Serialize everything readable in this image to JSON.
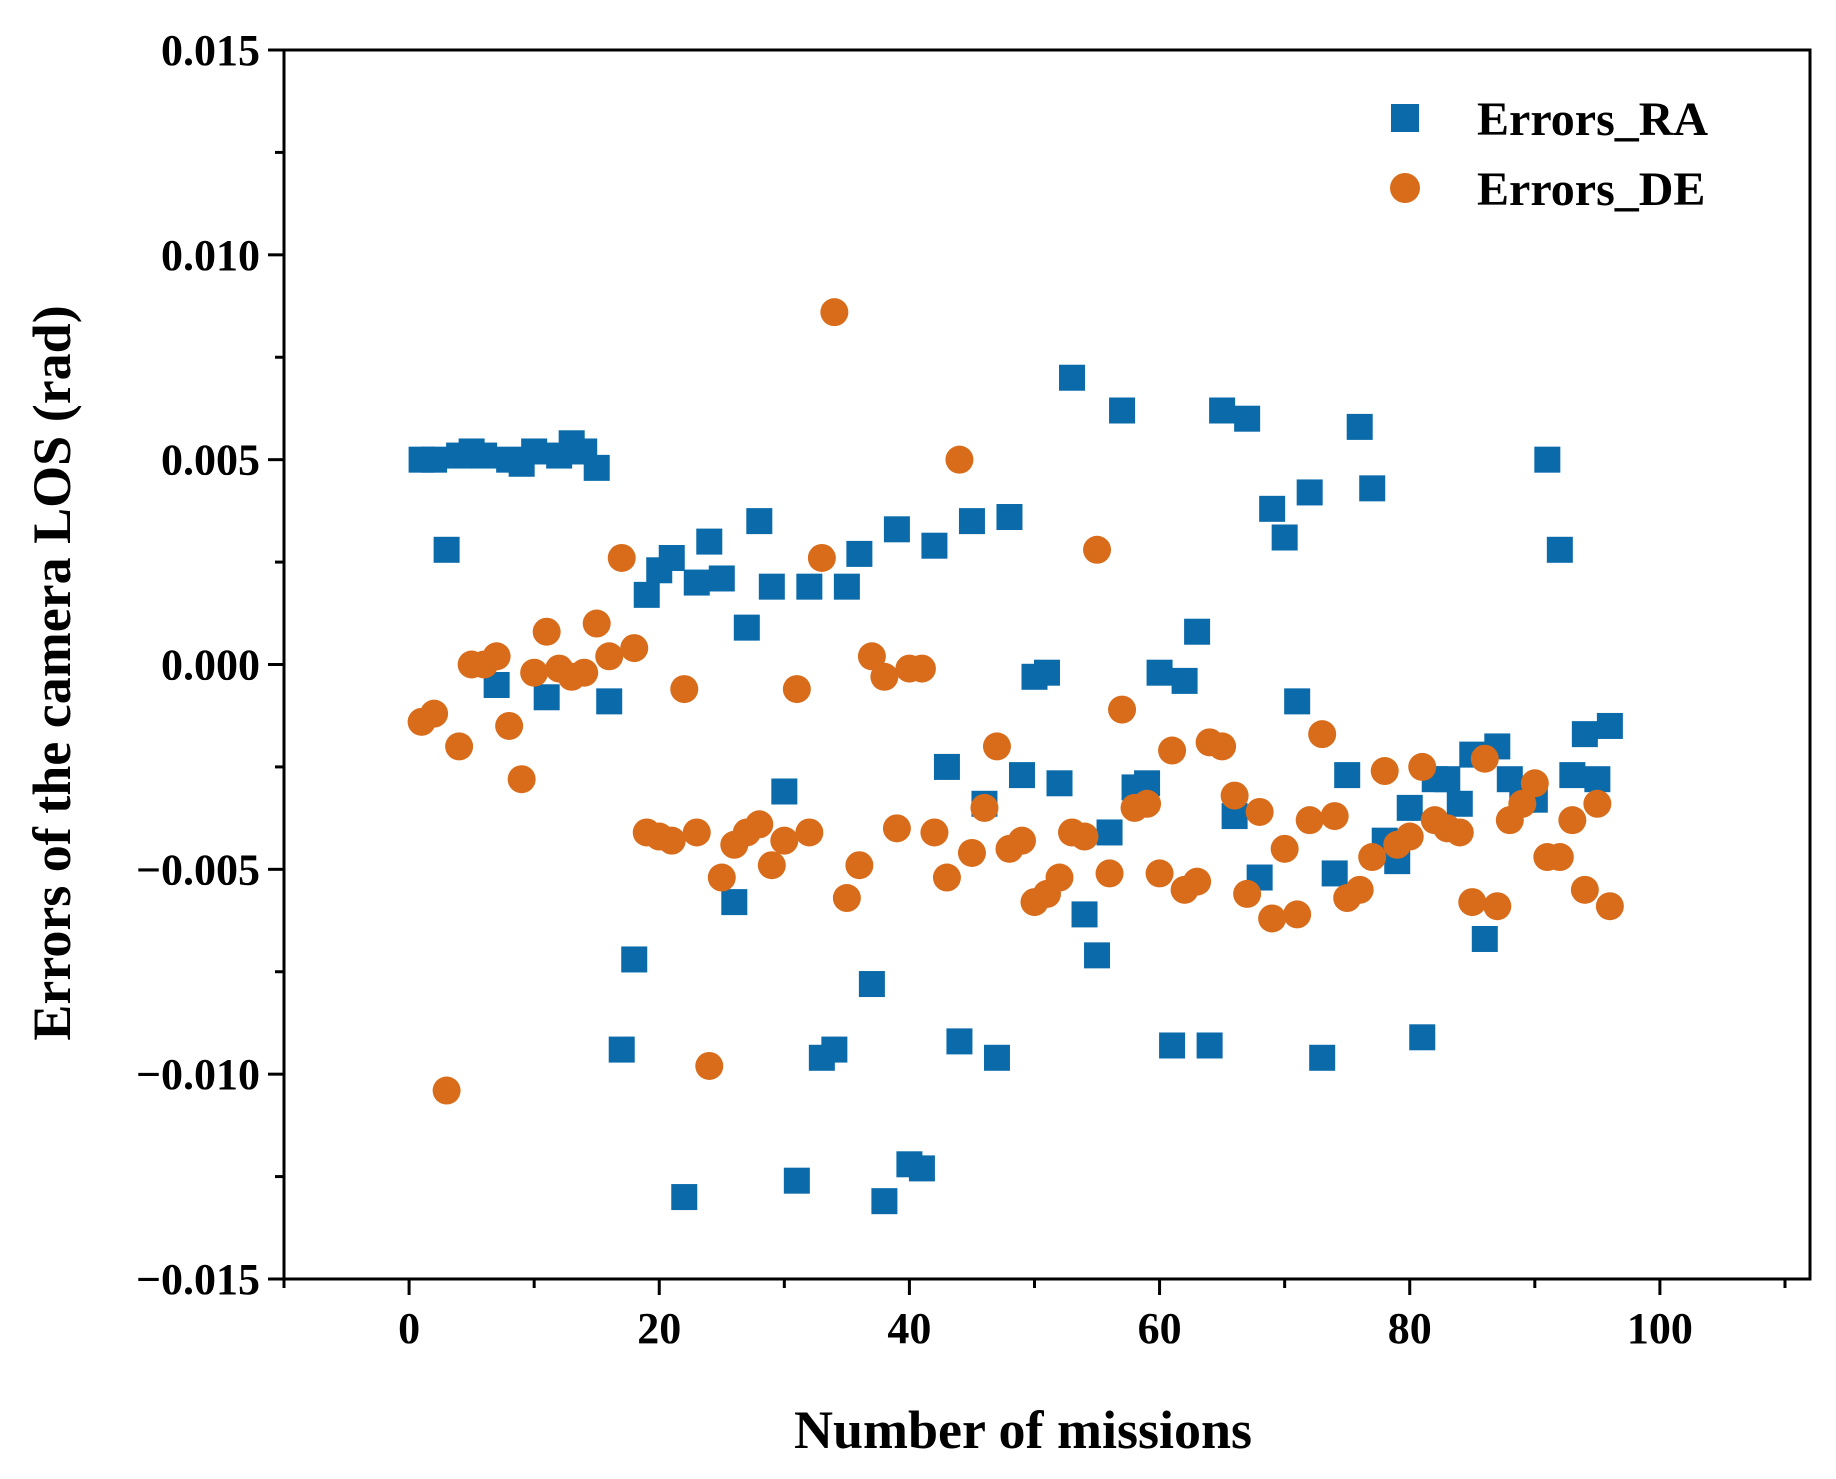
{
  "chart_data": {
    "type": "scatter",
    "title": "",
    "xlabel": "Number of missions",
    "ylabel": "Errors of the camera LOS (rad)",
    "xlim": [
      -10,
      112
    ],
    "ylim": [
      -0.015,
      0.015
    ],
    "xticks": [
      0,
      20,
      40,
      60,
      80,
      100
    ],
    "xtick_labels": [
      "0",
      "20",
      "40",
      "60",
      "80",
      "100"
    ],
    "xminor_step": 10,
    "yticks": [
      -0.015,
      -0.01,
      -0.005,
      0.0,
      0.005,
      0.01,
      0.015
    ],
    "ytick_labels": [
      "−0.015",
      "−0.010",
      "−0.005",
      "0.000",
      "0.005",
      "0.010",
      "0.015"
    ],
    "yminor_step": 0.0025,
    "grid": false,
    "legend_position": "top-right",
    "series": [
      {
        "name": "Errors_RA",
        "marker": "square",
        "color": "#0a6aaa",
        "x": [
          1,
          2,
          3,
          4,
          5,
          6,
          7,
          8,
          9,
          10,
          11,
          12,
          13,
          14,
          15,
          16,
          17,
          18,
          19,
          20,
          21,
          22,
          23,
          24,
          25,
          26,
          27,
          28,
          29,
          30,
          31,
          32,
          33,
          34,
          35,
          36,
          37,
          38,
          39,
          40,
          41,
          42,
          43,
          44,
          45,
          46,
          47,
          48,
          49,
          50,
          51,
          52,
          53,
          54,
          55,
          56,
          57,
          58,
          59,
          60,
          61,
          62,
          63,
          64,
          65,
          66,
          67,
          68,
          69,
          70,
          71,
          72,
          73,
          74,
          75,
          76,
          77,
          78,
          79,
          80,
          81,
          82,
          83,
          84,
          85,
          86,
          87,
          88,
          89,
          90,
          91,
          92,
          93,
          94,
          95,
          96
        ],
        "y": [
          0.005,
          0.005,
          0.0028,
          0.0051,
          0.0052,
          0.0051,
          -0.0005,
          0.005,
          0.0049,
          0.0052,
          -0.0008,
          0.0051,
          0.0054,
          0.0052,
          0.0048,
          -0.0009,
          -0.0094,
          -0.0072,
          0.0017,
          0.0023,
          0.0026,
          -0.013,
          0.002,
          0.003,
          0.0021,
          -0.0058,
          0.0009,
          0.0035,
          0.0019,
          -0.0031,
          -0.0126,
          0.0019,
          -0.0096,
          -0.0094,
          0.0019,
          0.0027,
          -0.0078,
          -0.0131,
          0.0033,
          -0.0122,
          -0.0123,
          0.0029,
          -0.0025,
          -0.0092,
          0.0035,
          -0.0034,
          -0.0096,
          0.0036,
          -0.0027,
          -0.0003,
          -0.0002,
          -0.0029,
          0.007,
          -0.0061,
          -0.0071,
          -0.0041,
          0.0062,
          -0.003,
          -0.0029,
          -0.0002,
          -0.0093,
          -0.0004,
          0.0008,
          -0.0093,
          0.0062,
          -0.0037,
          0.006,
          -0.0052,
          0.0038,
          0.0031,
          -0.0009,
          0.0042,
          -0.0096,
          -0.0051,
          -0.0027,
          0.0058,
          0.0043,
          -0.0043,
          -0.0048,
          -0.0035,
          -0.0091,
          -0.0028,
          -0.0028,
          -0.0034,
          -0.0022,
          -0.0067,
          -0.002,
          -0.0028,
          -0.0033,
          -0.0033,
          0.005,
          0.0028,
          -0.0027,
          -0.0017,
          -0.0028,
          -0.0015
        ]
      },
      {
        "name": "Errors_DE",
        "marker": "circle",
        "color": "#d96c1a",
        "x": [
          1,
          2,
          3,
          4,
          5,
          6,
          7,
          8,
          9,
          10,
          11,
          12,
          13,
          14,
          15,
          16,
          17,
          18,
          19,
          20,
          21,
          22,
          23,
          24,
          25,
          26,
          27,
          28,
          29,
          30,
          31,
          32,
          33,
          34,
          35,
          36,
          37,
          38,
          39,
          40,
          41,
          42,
          43,
          44,
          45,
          46,
          47,
          48,
          49,
          50,
          51,
          52,
          53,
          54,
          55,
          56,
          57,
          58,
          59,
          60,
          61,
          62,
          63,
          64,
          65,
          66,
          67,
          68,
          69,
          70,
          71,
          72,
          73,
          74,
          75,
          76,
          77,
          78,
          79,
          80,
          81,
          82,
          83,
          84,
          85,
          86,
          87,
          88,
          89,
          90,
          91,
          92,
          93,
          94,
          95,
          96
        ],
        "y": [
          -0.0014,
          -0.0012,
          -0.0104,
          -0.002,
          0.0,
          0.0,
          0.0002,
          -0.0015,
          -0.0028,
          -0.0002,
          0.0008,
          -0.0001,
          -0.0003,
          -0.0002,
          0.001,
          0.0002,
          0.0026,
          0.0004,
          -0.0041,
          -0.0042,
          -0.0043,
          -0.0006,
          -0.0041,
          -0.0098,
          -0.0052,
          -0.0044,
          -0.0041,
          -0.0039,
          -0.0049,
          -0.0043,
          -0.0006,
          -0.0041,
          0.0026,
          0.0086,
          -0.0057,
          -0.0049,
          0.0002,
          -0.0003,
          -0.004,
          -0.0001,
          -0.0001,
          -0.0041,
          -0.0052,
          0.005,
          -0.0046,
          -0.0035,
          -0.002,
          -0.0045,
          -0.0043,
          -0.0058,
          -0.0056,
          -0.0052,
          -0.0041,
          -0.0042,
          0.0028,
          -0.0051,
          -0.0011,
          -0.0035,
          -0.0034,
          -0.0051,
          -0.0021,
          -0.0055,
          -0.0053,
          -0.0019,
          -0.002,
          -0.0032,
          -0.0056,
          -0.0036,
          -0.0062,
          -0.0045,
          -0.0061,
          -0.0038,
          -0.0017,
          -0.0037,
          -0.0057,
          -0.0055,
          -0.0047,
          -0.0026,
          -0.0044,
          -0.0042,
          -0.0025,
          -0.0038,
          -0.004,
          -0.0041,
          -0.0058,
          -0.0023,
          -0.0059,
          -0.0038,
          -0.0034,
          -0.0029,
          -0.0047,
          -0.0047,
          -0.0038,
          -0.0055,
          -0.0034,
          -0.0059
        ]
      }
    ]
  }
}
